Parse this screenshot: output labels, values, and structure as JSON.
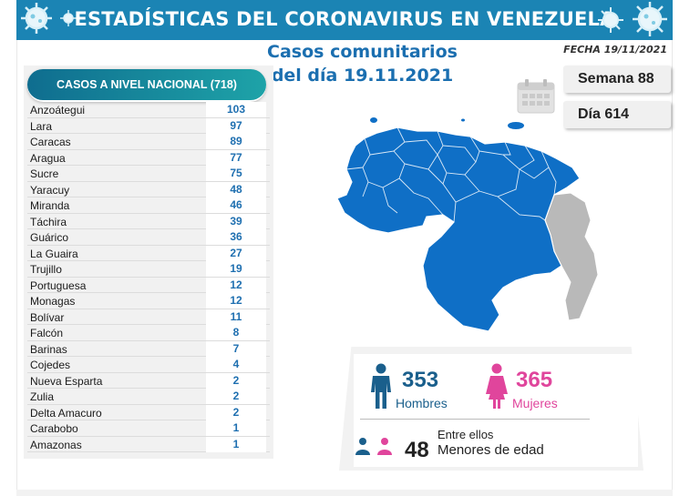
{
  "header": {
    "title": "ESTADÍSTICAS DEL CORONAVIRUS EN VENEZUELA"
  },
  "subtitle": {
    "line1": "Casos comunitarios",
    "line2": "del día 19.11.2021"
  },
  "fecha": "FECHA 19/11/2021",
  "table": {
    "title": "CASOS A NIVEL NACIONAL  (718)",
    "rows": [
      {
        "name": "Anzoátegui",
        "value": "103"
      },
      {
        "name": "Lara",
        "value": "97"
      },
      {
        "name": "Caracas",
        "value": "89"
      },
      {
        "name": "Aragua",
        "value": "77"
      },
      {
        "name": "Sucre",
        "value": "75"
      },
      {
        "name": "Yaracuy",
        "value": "48"
      },
      {
        "name": "Miranda",
        "value": "46"
      },
      {
        "name": "Táchira",
        "value": "39"
      },
      {
        "name": "Guárico",
        "value": "36"
      },
      {
        "name": "La Guaira",
        "value": "27"
      },
      {
        "name": "Trujillo",
        "value": "19"
      },
      {
        "name": "Portuguesa",
        "value": "12"
      },
      {
        "name": "Monagas",
        "value": "12"
      },
      {
        "name": "Bolívar",
        "value": "11"
      },
      {
        "name": "Falcón",
        "value": "8"
      },
      {
        "name": "Barinas",
        "value": "7"
      },
      {
        "name": "Cojedes",
        "value": "4"
      },
      {
        "name": "Nueva Esparta",
        "value": "2"
      },
      {
        "name": "Zulia",
        "value": "2"
      },
      {
        "name": "Delta Amacuro",
        "value": "2"
      },
      {
        "name": "Carabobo",
        "value": "1"
      },
      {
        "name": "Amazonas",
        "value": "1"
      }
    ]
  },
  "semana": "Semana 88",
  "dia": "Día 614",
  "stats": {
    "hombres_count": "353",
    "hombres_label": "Hombres",
    "mujeres_count": "365",
    "mujeres_label": "Mujeres",
    "entre_ellos": "Entre ellos",
    "menores_count": "48",
    "menores_label": "Menores de edad"
  },
  "colors": {
    "header_blue": "#1b84b4",
    "map_blue": "#0f6fc6",
    "map_gray": "#b9b9b9",
    "men_color": "#1a5f8c",
    "women_color": "#e0459c",
    "value_blue": "#1e6fb0"
  },
  "icons": [
    "virus-icon",
    "calendar-icon",
    "man-icon",
    "woman-icon",
    "boy-icon",
    "girl-icon"
  ]
}
